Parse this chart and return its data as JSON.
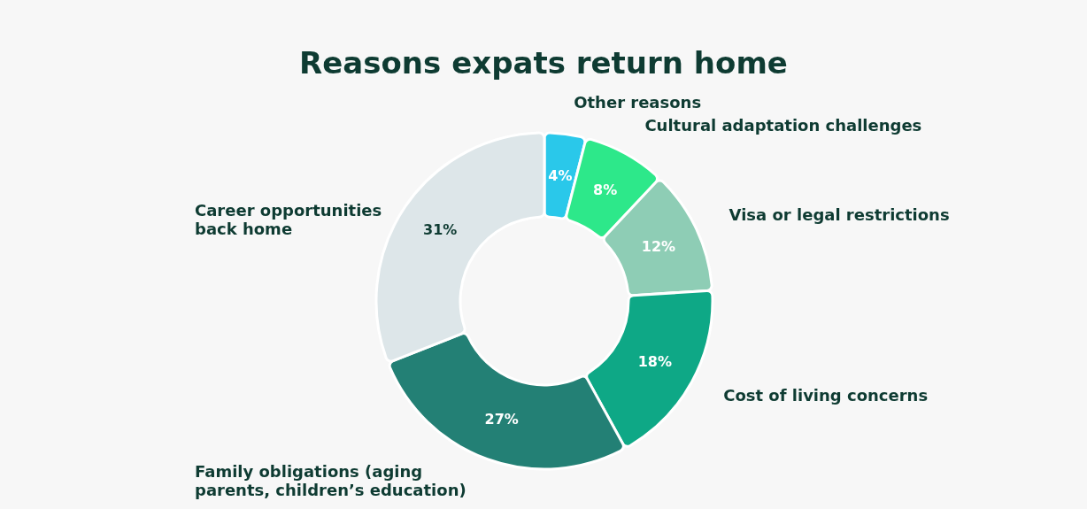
{
  "chart_data": {
    "type": "donut",
    "title": "Reasons expats return home",
    "categories": [
      "Other reasons",
      "Cultural adaptation challenges",
      "Visa or legal restrictions",
      "Cost of living concerns",
      "Family obligations (aging parents, children’s education)",
      "Career opportunities back home"
    ],
    "values": [
      4,
      8,
      12,
      18,
      27,
      31
    ],
    "value_labels": [
      "4%",
      "8%",
      "12%",
      "18%",
      "27%",
      "31%"
    ],
    "colors": [
      "#2ac8ea",
      "#2de88a",
      "#8ecdb5",
      "#0ea886",
      "#238075",
      "#dde6e9"
    ]
  }
}
